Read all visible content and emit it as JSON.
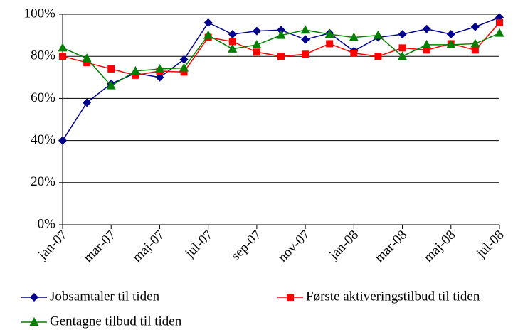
{
  "chart_data": {
    "type": "line",
    "categories": [
      "jan-07",
      null,
      "mar-07",
      null,
      "maj-07",
      null,
      "jul-07",
      null,
      "sep-07",
      null,
      "nov-07",
      null,
      "jan-08",
      null,
      "mar-08",
      null,
      "maj-08",
      null,
      "jul-08"
    ],
    "series": [
      {
        "name": "Jobsamtaler til tiden",
        "color": "#00008b",
        "marker": "diamond",
        "values": [
          40,
          58,
          67,
          72,
          70,
          78.5,
          96,
          90.5,
          92,
          92.5,
          88,
          91,
          82.5,
          89,
          90.5,
          93,
          90.5,
          94,
          98.5
        ]
      },
      {
        "name": "Første aktiveringstilbud til tiden",
        "color": "#ff0000",
        "marker": "square",
        "values": [
          80,
          77,
          74,
          71,
          73,
          72.5,
          89,
          87,
          82,
          80,
          81,
          86,
          81.5,
          80,
          84,
          83,
          86,
          83,
          96
        ]
      },
      {
        "name": "Gentagne tilbud til tiden",
        "color": "#008000",
        "marker": "triangle",
        "values": [
          84,
          79,
          66,
          73,
          74,
          74.5,
          90,
          83.5,
          85.5,
          90,
          92.5,
          90.5,
          89,
          90,
          80,
          85.5,
          85.5,
          86,
          91
        ]
      }
    ],
    "ylim": [
      0,
      100
    ],
    "yticks": [
      {
        "value": 0,
        "label": "0%"
      },
      {
        "value": 20,
        "label": "20%"
      },
      {
        "value": 40,
        "label": "40%"
      },
      {
        "value": 60,
        "label": "60%"
      },
      {
        "value": 80,
        "label": "80%"
      },
      {
        "value": 100,
        "label": "100%"
      }
    ],
    "grid": true
  }
}
